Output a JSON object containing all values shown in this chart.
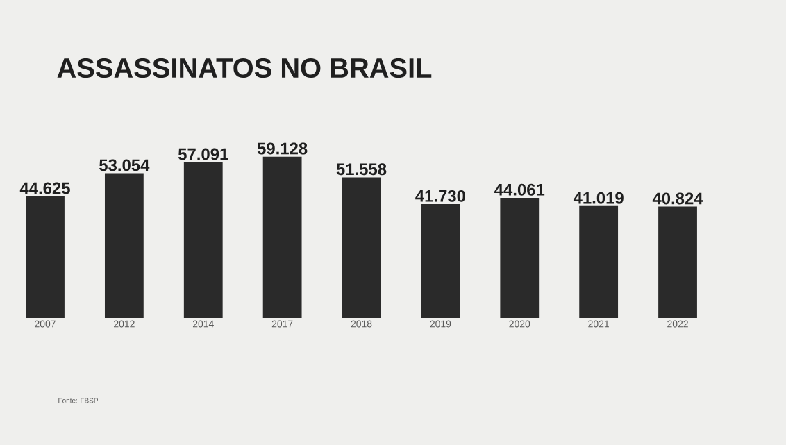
{
  "chart_data": {
    "type": "bar",
    "title": "ASSASSINATOS NO BRASIL",
    "categories": [
      "2007",
      "2012",
      "2014",
      "2017",
      "2018",
      "2019",
      "2020",
      "2021",
      "2022"
    ],
    "values": [
      44625,
      53054,
      57091,
      59128,
      51558,
      41730,
      44061,
      41019,
      40824
    ],
    "value_labels": [
      "44.625",
      "53.054",
      "57.091",
      "59.128",
      "51.558",
      "41.730",
      "44.061",
      "41.019",
      "40.824"
    ],
    "color": "#2a2a2a",
    "tick_labels": "x",
    "annotations": [
      "Fonte: FBSP"
    ]
  }
}
